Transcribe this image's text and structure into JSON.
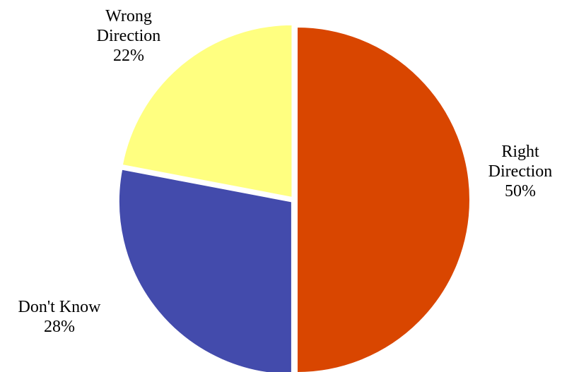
{
  "chart_data": {
    "type": "pie",
    "title": "",
    "slices": [
      {
        "label_lines": [
          "Right",
          "Direction"
        ],
        "value": 50,
        "percent_text": "50%",
        "color": "#D94600"
      },
      {
        "label_lines": [
          "Don't Know"
        ],
        "value": 28,
        "percent_text": "28%",
        "color": "#434BAC"
      },
      {
        "label_lines": [
          "Wrong",
          "Direction"
        ],
        "value": 22,
        "percent_text": "22%",
        "color": "#FFFF80"
      }
    ],
    "start_angle_deg": 0,
    "direction": "clockwise",
    "slice_border_color": "#ffffff"
  }
}
